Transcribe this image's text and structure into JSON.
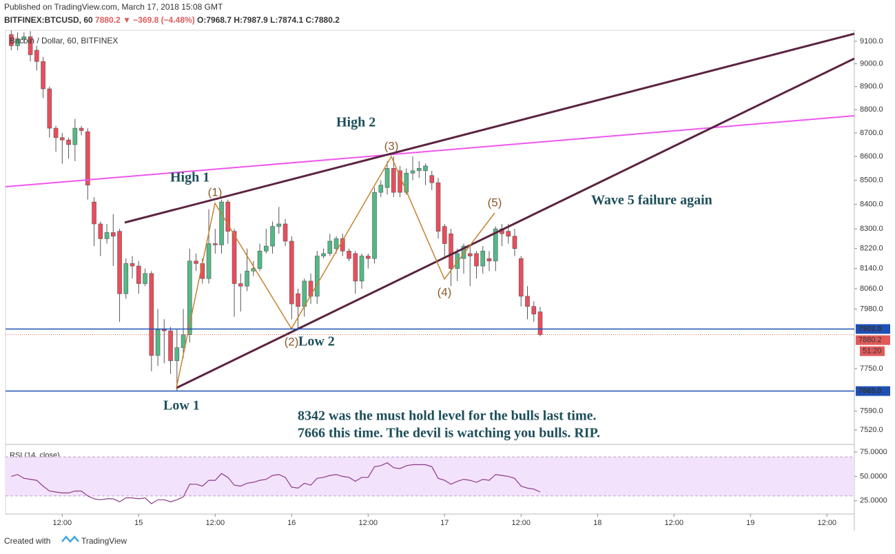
{
  "header": {
    "published": "Published on TradingView.com, March 17, 2018 15:08 GMT",
    "symbol": "BITFINEX:BTCUSD, 60",
    "last": "7880.2",
    "change": "▼ −369.8 (−4.48%)",
    "ohlc": [
      "O:7968.7",
      "H:7987.9",
      "L:7874.1",
      "C:7880.2"
    ]
  },
  "footer": {
    "created": "Created with",
    "brand": "TradingView"
  },
  "chart_data": {
    "type": "candlestick",
    "legend": "Bitcoin / Dollar, 60, BITFINEX",
    "log_scale": true,
    "up_color": "#53b987",
    "down_color": "#eb4d5c",
    "x": [
      4,
      5,
      6,
      7,
      8,
      9,
      10,
      11,
      12,
      13,
      14,
      15,
      16,
      17,
      18,
      19,
      20,
      21,
      22,
      23,
      24,
      25,
      26,
      27,
      28,
      29,
      30,
      31,
      32,
      33,
      34,
      35,
      36,
      37,
      38,
      39,
      40,
      41,
      42,
      43,
      44,
      45,
      46,
      47,
      48,
      49,
      50,
      51,
      52,
      53,
      54,
      55,
      56,
      57,
      58,
      59,
      60,
      61,
      62,
      63,
      64,
      65,
      66,
      67,
      68,
      69,
      70,
      71,
      72,
      73,
      74,
      75,
      76,
      77,
      78,
      79,
      80,
      81,
      82,
      83,
      84,
      85,
      86,
      87
    ],
    "open": [
      9130,
      9080,
      9110,
      9120,
      9060,
      9010,
      8890,
      8720,
      8680,
      8670,
      8650,
      8720,
      8705,
      8410,
      8320,
      8260,
      8285,
      8290,
      8040,
      8160,
      8150,
      8080,
      8120,
      7800,
      7900,
      7895,
      7780,
      7830,
      7880,
      8170,
      8160,
      8100,
      8240,
      8235,
      8410,
      8290,
      8080,
      8070,
      8130,
      8140,
      8210,
      8230,
      8310,
      8320,
      8250,
      8040,
      7990,
      8090,
      8030,
      8190,
      8200,
      8220,
      8260,
      8210,
      8200,
      8090,
      8190,
      8180,
      8450,
      8470,
      8550,
      8540,
      8450,
      8530,
      8540,
      8540,
      8520,
      8490,
      8310,
      8280,
      8140,
      8180,
      8200,
      8200,
      8150,
      8180,
      8170,
      8300,
      8290,
      8270,
      8180,
      8030,
      7990,
      7968.7
    ],
    "high": [
      9148,
      9140,
      9140,
      9145,
      9080,
      9030,
      8900,
      8730,
      8700,
      8680,
      8760,
      8730,
      8720,
      8430,
      8330,
      8320,
      8360,
      8300,
      8180,
      8190,
      8170,
      8140,
      8130,
      7980,
      7940,
      7910,
      7900,
      7980,
      8220,
      8200,
      8180,
      8380,
      8300,
      8420,
      8420,
      8300,
      8120,
      8220,
      8170,
      8240,
      8300,
      8330,
      8390,
      8340,
      8270,
      8060,
      8100,
      8120,
      8210,
      8220,
      8280,
      8270,
      8280,
      8220,
      8210,
      8200,
      8200,
      8470,
      8500,
      8580,
      8600,
      8560,
      8550,
      8600,
      8580,
      8570,
      8540,
      8510,
      8320,
      8300,
      8220,
      8240,
      8230,
      8210,
      8230,
      8210,
      8310,
      8320,
      8320,
      8300,
      8190,
      8070,
      8010,
      7987.9
    ],
    "low": [
      9060,
      9060,
      9090,
      9010,
      8970,
      8850,
      8680,
      8620,
      8570,
      8590,
      8580,
      8690,
      8420,
      8230,
      8190,
      8240,
      8150,
      7930,
      8020,
      8100,
      8040,
      8070,
      7740,
      7760,
      7770,
      7730,
      7665,
      7790,
      7850,
      8130,
      8080,
      8080,
      8200,
      8200,
      8240,
      7950,
      7970,
      8050,
      8110,
      8130,
      8200,
      8200,
      8280,
      8230,
      7940,
      7900,
      7950,
      8000,
      8000,
      8180,
      8190,
      8200,
      8190,
      8170,
      8040,
      8060,
      8140,
      8160,
      8430,
      8440,
      8430,
      8430,
      8440,
      8500,
      8510,
      8480,
      8460,
      8260,
      8180,
      8070,
      8090,
      8120,
      8070,
      8100,
      8120,
      8130,
      8130,
      8230,
      8240,
      8190,
      7990,
      7940,
      7930,
      7874.1
    ],
    "close": [
      9080,
      9110,
      9120,
      9040,
      9010,
      8890,
      8720,
      8680,
      8670,
      8650,
      8720,
      8710,
      8480,
      8320,
      8260,
      8285,
      8270,
      8040,
      8160,
      8150,
      8080,
      8120,
      7800,
      7900,
      7895,
      7780,
      7830,
      7880,
      8170,
      8160,
      8100,
      8240,
      8235,
      8410,
      8290,
      8080,
      8070,
      8130,
      8140,
      8210,
      8230,
      8310,
      8320,
      8250,
      8000,
      7990,
      8090,
      8030,
      8190,
      8200,
      8250,
      8260,
      8210,
      8180,
      8090,
      8190,
      8180,
      8450,
      8480,
      8550,
      8450,
      8450,
      8530,
      8540,
      8550,
      8560,
      8490,
      8290,
      8240,
      8140,
      8200,
      8230,
      8190,
      8150,
      8210,
      8170,
      8300,
      8280,
      8270,
      8220,
      8030,
      7990,
      7960,
      7880.2
    ],
    "xlim": [
      3.1,
      136.3
    ],
    "xticks": [
      {
        "value": 12,
        "label": "12:00"
      },
      {
        "value": 24,
        "label": "15"
      },
      {
        "value": 36,
        "label": "12:00"
      },
      {
        "value": 48,
        "label": "16"
      },
      {
        "value": 60,
        "label": "12:00"
      },
      {
        "value": 72,
        "label": "17"
      },
      {
        "value": 84,
        "label": "12:00"
      },
      {
        "value": 96,
        "label": "18"
      },
      {
        "value": 108,
        "label": "12:00"
      },
      {
        "value": 120,
        "label": "19"
      },
      {
        "value": 132,
        "label": "12:00"
      }
    ],
    "ylim": [
      7472,
      9149
    ],
    "yticks": [
      {
        "value": 9100,
        "label": "9100.0"
      },
      {
        "value": 9000,
        "label": "9000.0"
      },
      {
        "value": 8900,
        "label": "8900.0"
      },
      {
        "value": 8800,
        "label": "8800.0"
      },
      {
        "value": 8700,
        "label": "8700.0"
      },
      {
        "value": 8600,
        "label": "8600.0"
      },
      {
        "value": 8500,
        "label": "8500.0"
      },
      {
        "value": 8400,
        "label": "8400.0"
      },
      {
        "value": 8300,
        "label": "8300.0"
      },
      {
        "value": 8220,
        "label": "8220.0"
      },
      {
        "value": 8140,
        "label": "8140.0"
      },
      {
        "value": 8060,
        "label": "8060.0"
      },
      {
        "value": 7980,
        "label": "7980.0"
      },
      {
        "value": 7750,
        "label": "7750.0"
      },
      {
        "value": 7590,
        "label": "7590.0"
      },
      {
        "value": 7520,
        "label": "7520.0"
      }
    ],
    "levels": [
      {
        "value": 7902,
        "label": "7902.0",
        "color": "#1e50b4"
      },
      {
        "value": 7665,
        "label": "7665.0",
        "color": "#1e50b4"
      }
    ],
    "last_price": {
      "value": 7880.2,
      "label": "7880.2",
      "countdown": "51:20",
      "color": "#e05a5a"
    },
    "annotations": [
      "High 1",
      "High 2",
      "Low 1",
      "Low 2",
      "Wave 5 failure again",
      "8342 was the must hold level for the bulls last time.",
      "7666 this time. The devil is watching you bulls. RIP."
    ],
    "waves": [
      "(1)",
      "(2)",
      "(3)",
      "(4)",
      "(5)"
    ],
    "rsi": {
      "label": "RSI (14, close)",
      "color": "#8a3a8a",
      "band": [
        30,
        70
      ],
      "band_color": "#f3e2fb",
      "values": [
        50,
        52,
        48,
        47,
        46,
        40,
        35,
        34,
        33,
        33,
        35,
        35,
        30,
        27,
        26,
        27,
        27,
        24,
        28,
        28,
        27,
        28,
        22,
        26,
        26,
        24,
        26,
        29,
        42,
        42,
        40,
        46,
        46,
        53,
        49,
        41,
        40,
        43,
        44,
        46,
        47,
        51,
        52,
        49,
        39,
        38,
        43,
        41,
        48,
        49,
        51,
        52,
        50,
        49,
        45,
        49,
        49,
        60,
        61,
        64,
        59,
        58,
        61,
        62,
        62,
        62,
        60,
        48,
        46,
        42,
        45,
        47,
        46,
        44,
        47,
        46,
        52,
        51,
        50,
        48,
        40,
        38,
        37,
        34
      ],
      "ylim": [
        11.4,
        82.1
      ],
      "yticks": [
        {
          "value": 75,
          "label": "75.0000"
        },
        {
          "value": 50,
          "label": "50.0000"
        },
        {
          "value": 25,
          "label": "25.0000"
        }
      ]
    }
  }
}
